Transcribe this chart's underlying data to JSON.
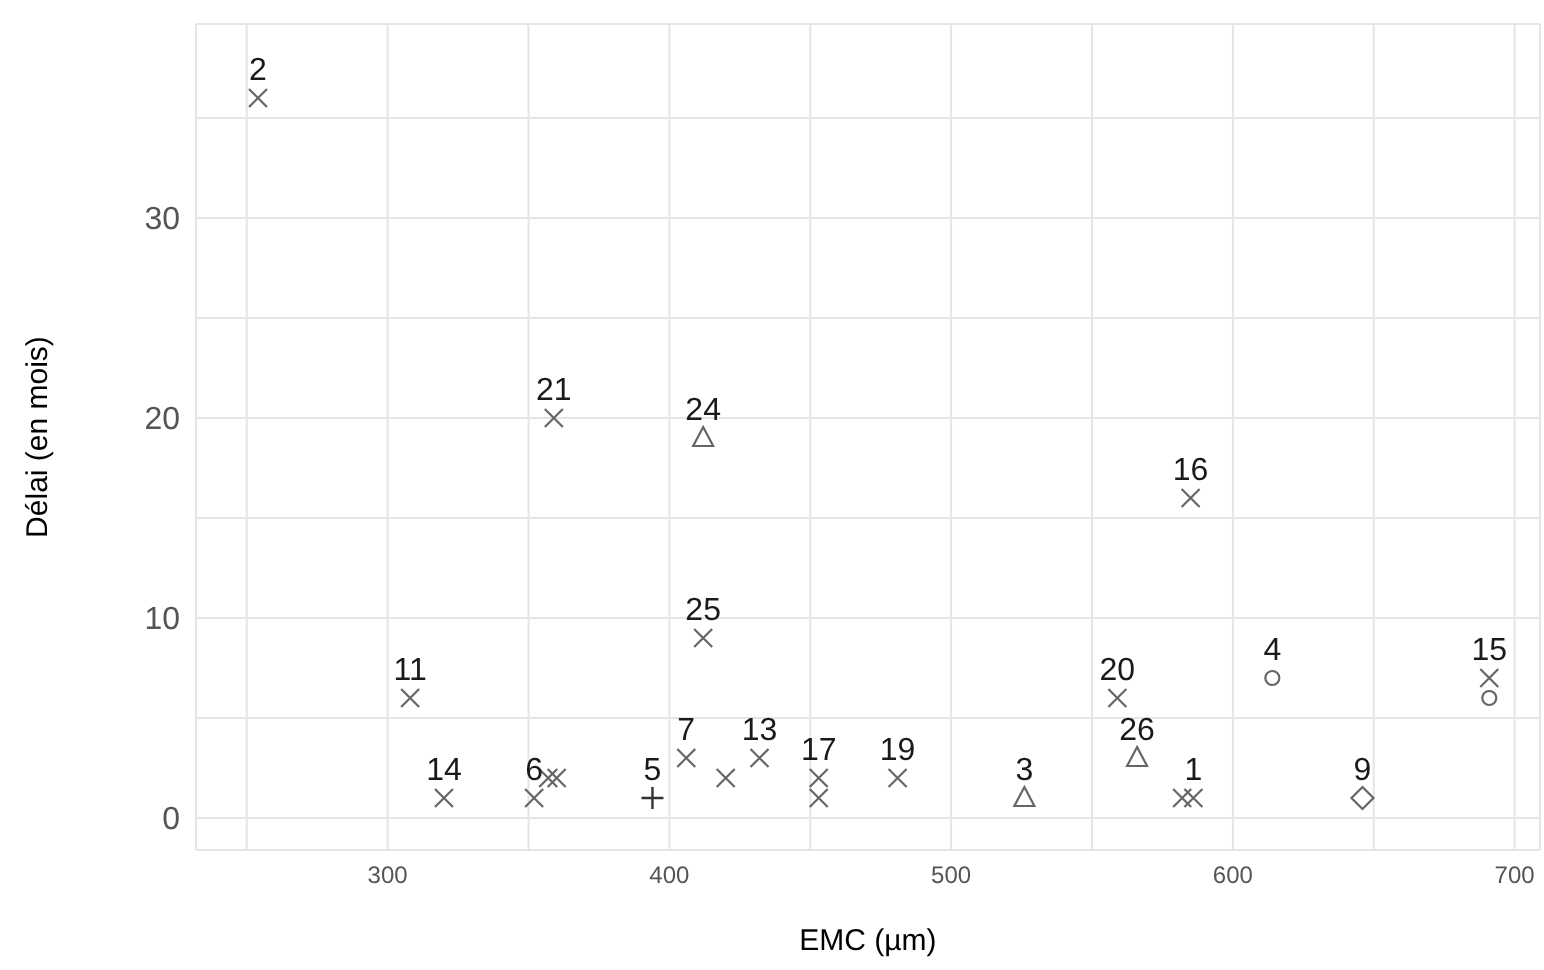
{
  "chart_data": {
    "type": "scatter",
    "xlabel": "EMC (µm)",
    "ylabel": "Délai (en mois)",
    "xlim": [
      232,
      709
    ],
    "ylim": [
      -1.6,
      39.7
    ],
    "xticks": [
      {
        "value": 250,
        "label": null
      },
      300,
      {
        "value": 350,
        "label": null
      },
      400,
      {
        "value": 450,
        "label": null
      },
      500,
      {
        "value": 550,
        "label": null
      },
      600,
      {
        "value": 650,
        "label": null
      },
      700
    ],
    "yticks": [
      0,
      {
        "value": 5,
        "label": null
      },
      10,
      {
        "value": 15,
        "label": null
      },
      20,
      {
        "value": 25,
        "label": null
      },
      30,
      {
        "value": 35,
        "label": null
      }
    ],
    "grid": true,
    "series": [
      {
        "marker": "cross",
        "color": "#666666",
        "x": [
          254,
          359,
          308,
          320,
          352,
          357,
          360,
          406,
          412,
          420,
          432,
          453,
          453,
          481,
          559,
          585,
          582,
          586,
          691
        ],
        "values": [
          36,
          20,
          6,
          1,
          1,
          2,
          2,
          3,
          9,
          2,
          3,
          2,
          1,
          2,
          6,
          16,
          1,
          1,
          7
        ]
      },
      {
        "marker": "triangle",
        "color": "#666666",
        "x": [
          412,
          526,
          566
        ],
        "values": [
          19,
          1,
          3
        ]
      },
      {
        "marker": "plus",
        "color": "#333333",
        "x": [
          394
        ],
        "values": [
          1
        ]
      },
      {
        "marker": "circle",
        "color": "#666666",
        "x": [
          614,
          691
        ],
        "values": [
          7,
          6
        ]
      },
      {
        "marker": "diamond",
        "color": "#666666",
        "x": [
          646
        ],
        "values": [
          1
        ]
      }
    ],
    "annotations": [
      {
        "text": "2",
        "x": 254,
        "y": 36
      },
      {
        "text": "21",
        "x": 359,
        "y": 20
      },
      {
        "text": "24",
        "x": 412,
        "y": 19
      },
      {
        "text": "11",
        "x": 308,
        "y": 6
      },
      {
        "text": "14",
        "x": 320,
        "y": 1
      },
      {
        "text": "6",
        "x": 352,
        "y": 1
      },
      {
        "text": "5",
        "x": 394,
        "y": 1
      },
      {
        "text": "7",
        "x": 406,
        "y": 3
      },
      {
        "text": "25",
        "x": 412,
        "y": 9
      },
      {
        "text": "13",
        "x": 432,
        "y": 3
      },
      {
        "text": "17",
        "x": 453,
        "y": 2
      },
      {
        "text": "19",
        "x": 481,
        "y": 2
      },
      {
        "text": "3",
        "x": 526,
        "y": 1
      },
      {
        "text": "20",
        "x": 559,
        "y": 6
      },
      {
        "text": "26",
        "x": 566,
        "y": 3
      },
      {
        "text": "1",
        "x": 586,
        "y": 1
      },
      {
        "text": "16",
        "x": 585,
        "y": 16
      },
      {
        "text": "4",
        "x": 614,
        "y": 7
      },
      {
        "text": "9",
        "x": 646,
        "y": 1
      },
      {
        "text": "15",
        "x": 691,
        "y": 7
      }
    ]
  }
}
